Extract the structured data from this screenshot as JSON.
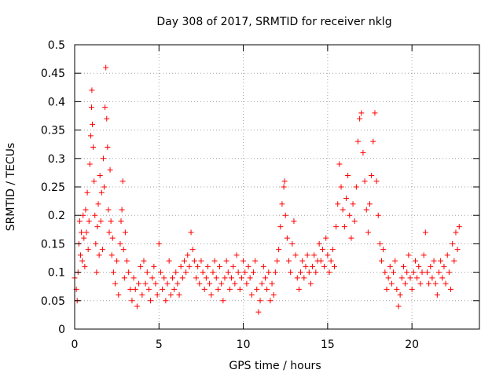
{
  "chart_data": {
    "type": "scatter",
    "title": "Day 308 of 2017, SRMTID for receiver nklg",
    "xlabel": "GPS time / hours",
    "ylabel": "SRMTID / TECUs",
    "xlim": [
      0,
      24
    ],
    "ylim": [
      0,
      0.5
    ],
    "xticks": [
      0,
      5,
      10,
      15,
      20
    ],
    "xtick_labels": [
      "0",
      "5",
      "10",
      "15",
      "20"
    ],
    "yticks": [
      0,
      0.05,
      0.1,
      0.15,
      0.2,
      0.25,
      0.3,
      0.35,
      0.4,
      0.45,
      0.5
    ],
    "ytick_labels": [
      "0",
      "0.05",
      "0.1",
      "0.15",
      "0.2",
      "0.25",
      "0.3",
      "0.35",
      "0.4",
      "0.45",
      "0.5"
    ],
    "grid": true,
    "marker": "+",
    "series_color": "#ff0000",
    "series": [
      {
        "name": "SRMTID",
        "points": [
          [
            0.0,
            0.09
          ],
          [
            0.1,
            0.07
          ],
          [
            0.15,
            0.05
          ],
          [
            0.2,
            0.1
          ],
          [
            0.25,
            0.15
          ],
          [
            0.3,
            0.19
          ],
          [
            0.35,
            0.13
          ],
          [
            0.4,
            0.17
          ],
          [
            0.45,
            0.12
          ],
          [
            0.5,
            0.2
          ],
          [
            0.55,
            0.16
          ],
          [
            0.6,
            0.11
          ],
          [
            0.65,
            0.21
          ],
          [
            0.7,
            0.17
          ],
          [
            0.75,
            0.24
          ],
          [
            0.8,
            0.14
          ],
          [
            0.85,
            0.19
          ],
          [
            0.9,
            0.29
          ],
          [
            0.95,
            0.34
          ],
          [
            1.0,
            0.39
          ],
          [
            1.02,
            0.42
          ],
          [
            1.05,
            0.36
          ],
          [
            1.1,
            0.32
          ],
          [
            1.15,
            0.26
          ],
          [
            1.2,
            0.2
          ],
          [
            1.25,
            0.15
          ],
          [
            1.3,
            0.1
          ],
          [
            1.35,
            0.18
          ],
          [
            1.4,
            0.22
          ],
          [
            1.45,
            0.13
          ],
          [
            1.5,
            0.27
          ],
          [
            1.55,
            0.19
          ],
          [
            1.6,
            0.24
          ],
          [
            1.65,
            0.14
          ],
          [
            1.7,
            0.3
          ],
          [
            1.75,
            0.25
          ],
          [
            1.8,
            0.39
          ],
          [
            1.85,
            0.46
          ],
          [
            1.9,
            0.37
          ],
          [
            1.95,
            0.32
          ],
          [
            2.0,
            0.21
          ],
          [
            2.05,
            0.17
          ],
          [
            2.1,
            0.28
          ],
          [
            2.15,
            0.19
          ],
          [
            2.2,
            0.13
          ],
          [
            2.25,
            0.16
          ],
          [
            2.3,
            0.1
          ],
          [
            2.4,
            0.08
          ],
          [
            2.5,
            0.12
          ],
          [
            2.6,
            0.06
          ],
          [
            2.7,
            0.15
          ],
          [
            2.75,
            0.19
          ],
          [
            2.8,
            0.21
          ],
          [
            2.85,
            0.26
          ],
          [
            2.9,
            0.14
          ],
          [
            2.95,
            0.09
          ],
          [
            3.0,
            0.17
          ],
          [
            3.1,
            0.12
          ],
          [
            3.2,
            0.1
          ],
          [
            3.3,
            0.07
          ],
          [
            3.4,
            0.05
          ],
          [
            3.5,
            0.09
          ],
          [
            3.6,
            0.07
          ],
          [
            3.7,
            0.04
          ],
          [
            3.8,
            0.08
          ],
          [
            3.9,
            0.11
          ],
          [
            4.0,
            0.06
          ],
          [
            4.1,
            0.12
          ],
          [
            4.2,
            0.08
          ],
          [
            4.3,
            0.1
          ],
          [
            4.4,
            0.07
          ],
          [
            4.5,
            0.05
          ],
          [
            4.6,
            0.09
          ],
          [
            4.7,
            0.11
          ],
          [
            4.8,
            0.08
          ],
          [
            4.9,
            0.06
          ],
          [
            5.0,
            0.15
          ],
          [
            5.1,
            0.1
          ],
          [
            5.2,
            0.07
          ],
          [
            5.3,
            0.09
          ],
          [
            5.4,
            0.05
          ],
          [
            5.5,
            0.08
          ],
          [
            5.6,
            0.12
          ],
          [
            5.7,
            0.06
          ],
          [
            5.8,
            0.09
          ],
          [
            5.9,
            0.07
          ],
          [
            6.0,
            0.1
          ],
          [
            6.1,
            0.08
          ],
          [
            6.2,
            0.06
          ],
          [
            6.3,
            0.11
          ],
          [
            6.4,
            0.09
          ],
          [
            6.5,
            0.12
          ],
          [
            6.6,
            0.1
          ],
          [
            6.7,
            0.13
          ],
          [
            6.8,
            0.11
          ],
          [
            6.9,
            0.17
          ],
          [
            7.0,
            0.14
          ],
          [
            7.1,
            0.12
          ],
          [
            7.2,
            0.09
          ],
          [
            7.3,
            0.11
          ],
          [
            7.4,
            0.08
          ],
          [
            7.5,
            0.12
          ],
          [
            7.6,
            0.1
          ],
          [
            7.7,
            0.07
          ],
          [
            7.8,
            0.09
          ],
          [
            7.9,
            0.11
          ],
          [
            8.0,
            0.08
          ],
          [
            8.1,
            0.06
          ],
          [
            8.2,
            0.1
          ],
          [
            8.3,
            0.12
          ],
          [
            8.4,
            0.09
          ],
          [
            8.5,
            0.07
          ],
          [
            8.6,
            0.11
          ],
          [
            8.7,
            0.08
          ],
          [
            8.8,
            0.05
          ],
          [
            8.9,
            0.09
          ],
          [
            9.0,
            0.12
          ],
          [
            9.1,
            0.1
          ],
          [
            9.2,
            0.07
          ],
          [
            9.3,
            0.09
          ],
          [
            9.4,
            0.11
          ],
          [
            9.5,
            0.08
          ],
          [
            9.6,
            0.13
          ],
          [
            9.7,
            0.1
          ],
          [
            9.8,
            0.07
          ],
          [
            9.9,
            0.09
          ],
          [
            10.0,
            0.12
          ],
          [
            10.1,
            0.1
          ],
          [
            10.2,
            0.08
          ],
          [
            10.3,
            0.11
          ],
          [
            10.4,
            0.09
          ],
          [
            10.5,
            0.06
          ],
          [
            10.6,
            0.1
          ],
          [
            10.7,
            0.12
          ],
          [
            10.8,
            0.07
          ],
          [
            10.9,
            0.03
          ],
          [
            11.0,
            0.05
          ],
          [
            11.1,
            0.08
          ],
          [
            11.2,
            0.11
          ],
          [
            11.3,
            0.09
          ],
          [
            11.4,
            0.07
          ],
          [
            11.5,
            0.1
          ],
          [
            11.6,
            0.05
          ],
          [
            11.7,
            0.08
          ],
          [
            11.8,
            0.06
          ],
          [
            11.9,
            0.1
          ],
          [
            12.0,
            0.12
          ],
          [
            12.1,
            0.14
          ],
          [
            12.2,
            0.18
          ],
          [
            12.3,
            0.22
          ],
          [
            12.4,
            0.25
          ],
          [
            12.45,
            0.26
          ],
          [
            12.5,
            0.2
          ],
          [
            12.6,
            0.16
          ],
          [
            12.7,
            0.12
          ],
          [
            12.8,
            0.1
          ],
          [
            12.9,
            0.15
          ],
          [
            13.0,
            0.19
          ],
          [
            13.1,
            0.13
          ],
          [
            13.2,
            0.09
          ],
          [
            13.3,
            0.07
          ],
          [
            13.4,
            0.1
          ],
          [
            13.5,
            0.12
          ],
          [
            13.6,
            0.09
          ],
          [
            13.7,
            0.11
          ],
          [
            13.8,
            0.13
          ],
          [
            13.9,
            0.1
          ],
          [
            14.0,
            0.08
          ],
          [
            14.1,
            0.11
          ],
          [
            14.2,
            0.13
          ],
          [
            14.3,
            0.1
          ],
          [
            14.4,
            0.12
          ],
          [
            14.5,
            0.15
          ],
          [
            14.6,
            0.12
          ],
          [
            14.7,
            0.14
          ],
          [
            14.8,
            0.11
          ],
          [
            14.9,
            0.16
          ],
          [
            15.0,
            0.13
          ],
          [
            15.1,
            0.1
          ],
          [
            15.2,
            0.12
          ],
          [
            15.3,
            0.14
          ],
          [
            15.4,
            0.11
          ],
          [
            15.5,
            0.18
          ],
          [
            15.6,
            0.22
          ],
          [
            15.7,
            0.29
          ],
          [
            15.8,
            0.25
          ],
          [
            15.9,
            0.21
          ],
          [
            16.0,
            0.18
          ],
          [
            16.1,
            0.23
          ],
          [
            16.2,
            0.27
          ],
          [
            16.3,
            0.2
          ],
          [
            16.4,
            0.16
          ],
          [
            16.5,
            0.22
          ],
          [
            16.6,
            0.19
          ],
          [
            16.7,
            0.25
          ],
          [
            16.8,
            0.33
          ],
          [
            16.9,
            0.37
          ],
          [
            17.0,
            0.38
          ],
          [
            17.1,
            0.31
          ],
          [
            17.2,
            0.26
          ],
          [
            17.3,
            0.21
          ],
          [
            17.4,
            0.17
          ],
          [
            17.5,
            0.22
          ],
          [
            17.6,
            0.27
          ],
          [
            17.7,
            0.33
          ],
          [
            17.8,
            0.38
          ],
          [
            17.9,
            0.26
          ],
          [
            18.0,
            0.2
          ],
          [
            18.1,
            0.15
          ],
          [
            18.2,
            0.12
          ],
          [
            18.3,
            0.14
          ],
          [
            18.4,
            0.1
          ],
          [
            18.5,
            0.07
          ],
          [
            18.6,
            0.09
          ],
          [
            18.7,
            0.11
          ],
          [
            18.8,
            0.08
          ],
          [
            18.9,
            0.1
          ],
          [
            19.0,
            0.12
          ],
          [
            19.1,
            0.07
          ],
          [
            19.2,
            0.04
          ],
          [
            19.3,
            0.06
          ],
          [
            19.4,
            0.09
          ],
          [
            19.5,
            0.11
          ],
          [
            19.6,
            0.08
          ],
          [
            19.7,
            0.1
          ],
          [
            19.8,
            0.13
          ],
          [
            19.9,
            0.09
          ],
          [
            20.0,
            0.07
          ],
          [
            20.1,
            0.1
          ],
          [
            20.2,
            0.12
          ],
          [
            20.3,
            0.09
          ],
          [
            20.4,
            0.11
          ],
          [
            20.5,
            0.08
          ],
          [
            20.6,
            0.1
          ],
          [
            20.7,
            0.13
          ],
          [
            20.8,
            0.17
          ],
          [
            20.9,
            0.1
          ],
          [
            21.0,
            0.08
          ],
          [
            21.1,
            0.11
          ],
          [
            21.2,
            0.09
          ],
          [
            21.3,
            0.12
          ],
          [
            21.4,
            0.08
          ],
          [
            21.5,
            0.06
          ],
          [
            21.6,
            0.1
          ],
          [
            21.7,
            0.12
          ],
          [
            21.8,
            0.09
          ],
          [
            21.9,
            0.11
          ],
          [
            22.0,
            0.08
          ],
          [
            22.1,
            0.13
          ],
          [
            22.2,
            0.1
          ],
          [
            22.3,
            0.07
          ],
          [
            22.4,
            0.15
          ],
          [
            22.5,
            0.12
          ],
          [
            22.6,
            0.17
          ],
          [
            22.7,
            0.14
          ],
          [
            22.8,
            0.18
          ]
        ]
      }
    ]
  }
}
